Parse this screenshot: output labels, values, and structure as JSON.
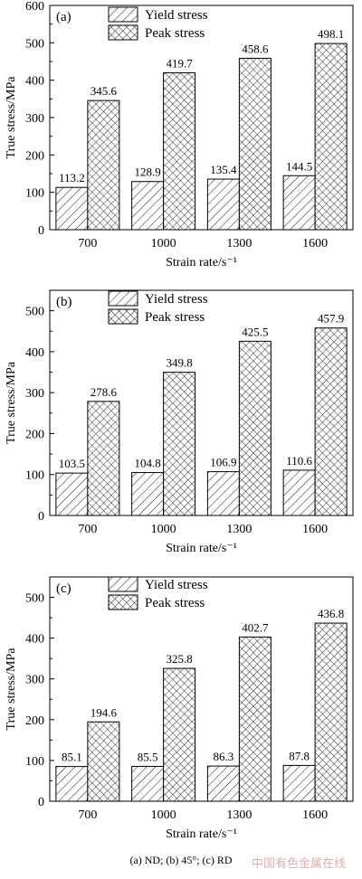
{
  "chart_data": [
    {
      "type": "bar",
      "panel_label": "(a)",
      "categories": [
        "700",
        "1000",
        "1300",
        "1600"
      ],
      "series": [
        {
          "name": "Yield stress",
          "values": [
            113.2,
            128.9,
            135.4,
            144.5
          ],
          "pattern": "hatch"
        },
        {
          "name": "Peak stress",
          "values": [
            345.6,
            419.7,
            458.6,
            498.1
          ],
          "pattern": "crosshatch"
        }
      ],
      "data_labels": [
        [
          "113.2",
          "128.9",
          "135.4",
          "144.5"
        ],
        [
          "345.6",
          "419.7",
          "458.6",
          "498.1"
        ]
      ],
      "xlabel": "Strain rate/s⁻¹",
      "ylabel": "True stress/MPa",
      "ylim": [
        0,
        600
      ],
      "yticks": [
        "0",
        "100",
        "200",
        "300",
        "400",
        "500",
        "600"
      ],
      "legend": "top-left",
      "grid": false
    },
    {
      "type": "bar",
      "panel_label": "(b)",
      "categories": [
        "700",
        "1000",
        "1300",
        "1600"
      ],
      "series": [
        {
          "name": "Yield stress",
          "values": [
            103.5,
            104.8,
            106.9,
            110.6
          ],
          "pattern": "hatch"
        },
        {
          "name": "Peak stress",
          "values": [
            278.6,
            349.8,
            425.5,
            457.9
          ],
          "pattern": "crosshatch"
        }
      ],
      "data_labels": [
        [
          "103.5",
          "104.8",
          "106.9",
          "110.6"
        ],
        [
          "278.6",
          "349.8",
          "425.5",
          "457.9"
        ]
      ],
      "xlabel": "Strain rate/s⁻¹",
      "ylabel": "True stress/MPa",
      "ylim": [
        0,
        550
      ],
      "yticks": [
        "0",
        "100",
        "200",
        "300",
        "400",
        "500"
      ],
      "legend": "top-left",
      "grid": false
    },
    {
      "type": "bar",
      "panel_label": "(c)",
      "categories": [
        "700",
        "1000",
        "1300",
        "1600"
      ],
      "series": [
        {
          "name": "Yield stress",
          "values": [
            85.1,
            85.5,
            86.3,
            87.8
          ],
          "pattern": "hatch"
        },
        {
          "name": "Peak stress",
          "values": [
            194.6,
            325.8,
            402.7,
            436.8
          ],
          "pattern": "crosshatch"
        }
      ],
      "data_labels": [
        [
          "85.1",
          "85.5",
          "86.3",
          "87.8"
        ],
        [
          "194.6",
          "325.8",
          "402.7",
          "436.8"
        ]
      ],
      "xlabel": "Strain rate/s⁻¹",
      "ylabel": "True stress/MPa",
      "ylim": [
        0,
        550
      ],
      "yticks": [
        "0",
        "100",
        "200",
        "300",
        "400",
        "500"
      ],
      "legend": "top-left",
      "grid": false
    }
  ],
  "caption": "(a) ND; (b) 45°; (c) RD",
  "watermark": "中国有色金属在线",
  "colors": {
    "axis": "#000000",
    "bar_fill": "#ffffff",
    "watermark": "#d8a0a0"
  }
}
